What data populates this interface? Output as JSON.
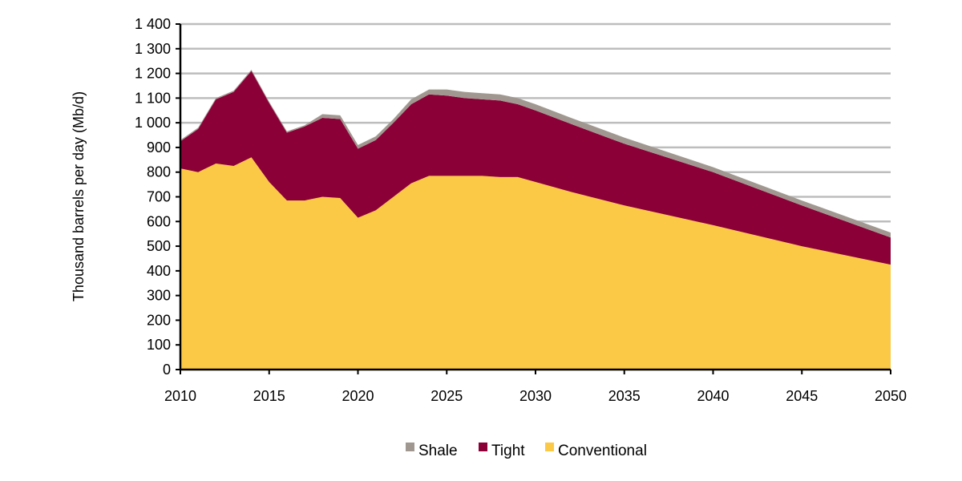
{
  "chart_data": {
    "type": "area",
    "stacked": true,
    "title": "",
    "xlabel": "",
    "ylabel": "Thousand barrels per day (Mb/d)",
    "xlim": [
      2010,
      2050
    ],
    "ylim": [
      0,
      1400
    ],
    "x_ticks": [
      "2010",
      "2015",
      "2020",
      "2025",
      "2030",
      "2035",
      "2040",
      "2045",
      "2050"
    ],
    "y_ticks": [
      "0",
      "100",
      "200",
      "300",
      "400",
      "500",
      "600",
      "700",
      "800",
      "900",
      "1 000",
      "1 100",
      "1 200",
      "1 300",
      "1 400"
    ],
    "grid": "horizontal",
    "legend_position": "bottom",
    "x": [
      2010,
      2011,
      2012,
      2013,
      2014,
      2015,
      2016,
      2017,
      2018,
      2019,
      2020,
      2021,
      2022,
      2023,
      2024,
      2025,
      2026,
      2027,
      2028,
      2029,
      2030,
      2032,
      2035,
      2040,
      2045,
      2050
    ],
    "series": [
      {
        "name": "Conventional",
        "color": "#FCC946",
        "values": [
          815,
          800,
          835,
          825,
          860,
          760,
          685,
          685,
          700,
          695,
          615,
          645,
          700,
          755,
          785,
          785,
          785,
          785,
          780,
          780,
          760,
          720,
          665,
          585,
          500,
          425
        ]
      },
      {
        "name": "Tight",
        "color": "#8C0038",
        "values": [
          110,
          175,
          260,
          300,
          350,
          320,
          275,
          300,
          320,
          320,
          280,
          285,
          300,
          320,
          330,
          325,
          315,
          310,
          310,
          295,
          290,
          275,
          250,
          215,
          165,
          110
        ]
      },
      {
        "name": "Shale",
        "color": "#A09890",
        "values": [
          5,
          5,
          5,
          5,
          5,
          5,
          5,
          5,
          15,
          15,
          15,
          15,
          15,
          20,
          20,
          25,
          25,
          25,
          25,
          25,
          25,
          25,
          25,
          20,
          20,
          20
        ]
      }
    ],
    "legend": [
      "Shale",
      "Tight",
      "Conventional"
    ]
  }
}
